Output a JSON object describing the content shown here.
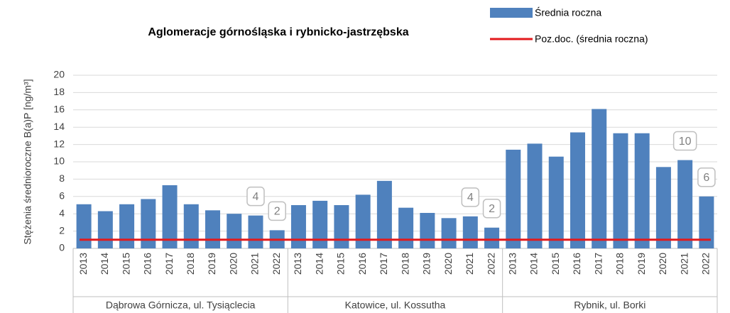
{
  "chart_data": {
    "type": "bar",
    "title": "Aglomeracje górnośląska i rybnicko-jastrzębska",
    "y_label": "Stężenia średnioroczne B(a)P [ng/m³]",
    "group_labels": [
      "Dąbrowa Górnicza, ul. Tysiąclecia",
      "Katowice, ul. Kossutha",
      "Rybnik, ul. Borki"
    ],
    "categories": [
      "2013",
      "2014",
      "2015",
      "2016",
      "2017",
      "2018",
      "2019",
      "2020",
      "2021",
      "2022",
      "2013",
      "2014",
      "2015",
      "2016",
      "2017",
      "2018",
      "2019",
      "2020",
      "2021",
      "2022",
      "2013",
      "2014",
      "2015",
      "2016",
      "2017",
      "2018",
      "2019",
      "2020",
      "2021",
      "2022"
    ],
    "series": [
      {
        "name": "Średnia roczna",
        "color": "#4f81bd",
        "values": [
          5.1,
          4.3,
          5.1,
          5.7,
          7.3,
          5.1,
          4.4,
          4.0,
          3.8,
          2.1,
          5.0,
          5.5,
          5.0,
          6.2,
          7.8,
          4.7,
          4.1,
          3.5,
          3.7,
          2.4,
          11.4,
          12.1,
          10.6,
          13.4,
          16.1,
          13.3,
          13.3,
          9.4,
          10.2,
          6.0
        ],
        "value_labels": [
          null,
          null,
          null,
          null,
          null,
          null,
          null,
          null,
          "4",
          "2",
          null,
          null,
          null,
          null,
          null,
          null,
          null,
          null,
          "4",
          "2",
          null,
          null,
          null,
          null,
          null,
          null,
          null,
          null,
          "10",
          "6"
        ]
      }
    ],
    "limit": {
      "name": "Poz.doc. (średnia roczna)",
      "value": 1,
      "color": "#e31a1c"
    },
    "ylim": [
      0,
      20
    ],
    "yticks": [
      0,
      2,
      4,
      6,
      8,
      10,
      12,
      14,
      16,
      18,
      20
    ],
    "grid": true
  }
}
